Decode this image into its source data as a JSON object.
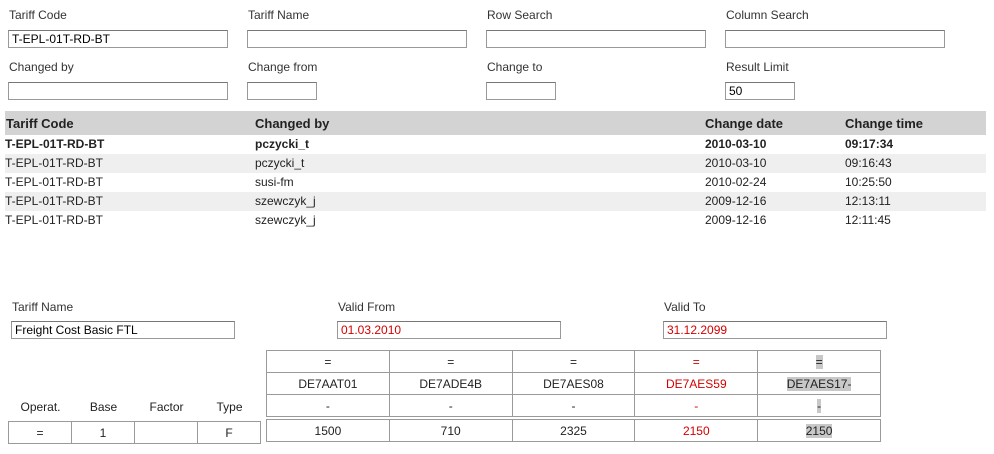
{
  "filters": {
    "tariff_code": {
      "label": "Tariff Code",
      "value": "T-EPL-01T-RD-BT"
    },
    "tariff_name": {
      "label": "Tariff Name",
      "value": ""
    },
    "row_search": {
      "label": "Row Search",
      "value": ""
    },
    "column_search": {
      "label": "Column Search",
      "value": ""
    },
    "changed_by": {
      "label": "Changed by",
      "value": ""
    },
    "change_from": {
      "label": "Change from",
      "value": ""
    },
    "change_to": {
      "label": "Change to",
      "value": ""
    },
    "result_limit": {
      "label": "Result Limit",
      "value": "50"
    }
  },
  "history": {
    "headers": {
      "tariff_code": "Tariff Code",
      "changed_by": "Changed by",
      "change_date": "Change date",
      "change_time": "Change time"
    },
    "rows": [
      {
        "tariff_code": "T-EPL-01T-RD-BT",
        "changed_by": "pczycki_t",
        "change_date": "2010-03-10",
        "change_time": "09:17:34"
      },
      {
        "tariff_code": "T-EPL-01T-RD-BT",
        "changed_by": "pczycki_t",
        "change_date": "2010-03-10",
        "change_time": "09:16:43"
      },
      {
        "tariff_code": "T-EPL-01T-RD-BT",
        "changed_by": "susi-fm",
        "change_date": "2010-02-24",
        "change_time": "10:25:50"
      },
      {
        "tariff_code": "T-EPL-01T-RD-BT",
        "changed_by": "szewczyk_j",
        "change_date": "2009-12-16",
        "change_time": "12:13:11"
      },
      {
        "tariff_code": "T-EPL-01T-RD-BT",
        "changed_by": "szewczyk_j",
        "change_date": "2009-12-16",
        "change_time": "12:11:45"
      }
    ]
  },
  "detail": {
    "tariff_name": {
      "label": "Tariff Name",
      "value": "Freight Cost Basic FTL"
    },
    "valid_from": {
      "label": "Valid From",
      "value": "01.03.2010"
    },
    "valid_to": {
      "label": "Valid To",
      "value": "31.12.2099"
    }
  },
  "left_table": {
    "headers": {
      "operat": "Operat.",
      "base": "Base",
      "factor": "Factor",
      "type": "Type"
    },
    "row": {
      "operat": "=",
      "base": "1",
      "factor": "",
      "type": "F"
    }
  },
  "columns": [
    {
      "op": "=",
      "code": "DE7AAT01",
      "dash": "-",
      "value": "1500"
    },
    {
      "op": "=",
      "code": "DE7ADE4B",
      "dash": "-",
      "value": "710"
    },
    {
      "op": "=",
      "code": "DE7AES08",
      "dash": "-",
      "value": "2325"
    },
    {
      "op": "=",
      "code": "DE7AES59",
      "dash": "-",
      "value": "2150"
    },
    {
      "op": "=",
      "code": "DE7AES17-",
      "dash": "-",
      "value": "2150"
    }
  ],
  "colors": {
    "changed": "#d40000",
    "header_bg": "#d3d3d3",
    "alt_row_bg": "#efefef",
    "selected_bg": "#c8c8c8"
  }
}
